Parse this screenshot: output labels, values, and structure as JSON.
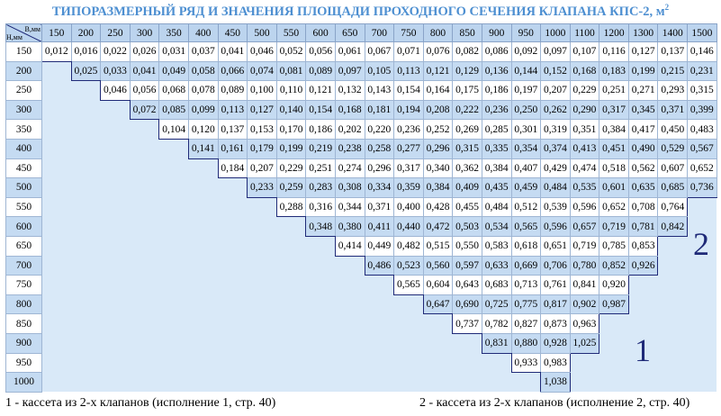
{
  "header": {
    "title": "ТИПОРАЗМЕРНЫЙ РЯД И ЗНАЧЕНИЯ ПЛОЩАДИ ПРОХОДНОГО СЕЧЕНИЯ КЛАПАНА КПС-2, м",
    "title_sup": "2"
  },
  "table": {
    "corner_top": "В,мм",
    "corner_bottom": "Н,мм",
    "columns": [
      "150",
      "200",
      "250",
      "300",
      "350",
      "400",
      "450",
      "500",
      "550",
      "600",
      "650",
      "700",
      "750",
      "800",
      "850",
      "900",
      "950",
      "1000",
      "1100",
      "1200",
      "1300",
      "1400",
      "1500"
    ],
    "rows": [
      {
        "label": "150",
        "cells": [
          "0,012",
          "0,016",
          "0,022",
          "0,026",
          "0,031",
          "0,037",
          "0,041",
          "0,046",
          "0,052",
          "0,056",
          "0,061",
          "0,067",
          "0,071",
          "0,076",
          "0,082",
          "0,086",
          "0,092",
          "0,097",
          "0,107",
          "0,116",
          "0,127",
          "0,137",
          "0,146"
        ]
      },
      {
        "label": "200",
        "cells": [
          null,
          "0,025",
          "0,033",
          "0,041",
          "0,049",
          "0,058",
          "0,066",
          "0,074",
          "0,081",
          "0,089",
          "0,097",
          "0,105",
          "0,113",
          "0,121",
          "0,129",
          "0,136",
          "0,144",
          "0,152",
          "0,168",
          "0,183",
          "0,199",
          "0,215",
          "0,231"
        ]
      },
      {
        "label": "250",
        "cells": [
          null,
          null,
          "0,046",
          "0,056",
          "0,068",
          "0,078",
          "0,089",
          "0,100",
          "0,110",
          "0,121",
          "0,132",
          "0,143",
          "0,154",
          "0,164",
          "0,175",
          "0,186",
          "0,197",
          "0,207",
          "0,229",
          "0,251",
          "0,271",
          "0,293",
          "0,315"
        ]
      },
      {
        "label": "300",
        "cells": [
          null,
          null,
          null,
          "0,072",
          "0,085",
          "0,099",
          "0,113",
          "0,127",
          "0,140",
          "0,154",
          "0,168",
          "0,181",
          "0,194",
          "0,208",
          "0,222",
          "0,236",
          "0,250",
          "0,262",
          "0,290",
          "0,317",
          "0,345",
          "0,371",
          "0,399"
        ]
      },
      {
        "label": "350",
        "cells": [
          null,
          null,
          null,
          null,
          "0,104",
          "0,120",
          "0,137",
          "0,153",
          "0,170",
          "0,186",
          "0,202",
          "0,220",
          "0,236",
          "0,252",
          "0,269",
          "0,285",
          "0,301",
          "0,319",
          "0,351",
          "0,384",
          "0,417",
          "0,450",
          "0,483"
        ]
      },
      {
        "label": "400",
        "cells": [
          null,
          null,
          null,
          null,
          null,
          "0,141",
          "0,161",
          "0,179",
          "0,199",
          "0,219",
          "0,238",
          "0,258",
          "0,277",
          "0,296",
          "0,315",
          "0,335",
          "0,354",
          "0,374",
          "0,413",
          "0,451",
          "0,490",
          "0,529",
          "0,567"
        ]
      },
      {
        "label": "450",
        "cells": [
          null,
          null,
          null,
          null,
          null,
          null,
          "0,184",
          "0,207",
          "0,229",
          "0,251",
          "0,274",
          "0,296",
          "0,317",
          "0,340",
          "0,362",
          "0,384",
          "0,407",
          "0,429",
          "0,474",
          "0,518",
          "0,562",
          "0,607",
          "0,652"
        ]
      },
      {
        "label": "500",
        "cells": [
          null,
          null,
          null,
          null,
          null,
          null,
          null,
          "0,233",
          "0,259",
          "0,283",
          "0,308",
          "0,334",
          "0,359",
          "0,384",
          "0,409",
          "0,435",
          "0,459",
          "0,484",
          "0,535",
          "0,601",
          "0,635",
          "0,685",
          "0,736"
        ]
      },
      {
        "label": "550",
        "cells": [
          null,
          null,
          null,
          null,
          null,
          null,
          null,
          null,
          "0,288",
          "0,316",
          "0,344",
          "0,371",
          "0,400",
          "0,428",
          "0,455",
          "0,484",
          "0,512",
          "0,539",
          "0,596",
          "0,652",
          "0,708",
          "0,764",
          null
        ]
      },
      {
        "label": "600",
        "cells": [
          null,
          null,
          null,
          null,
          null,
          null,
          null,
          null,
          null,
          "0,348",
          "0,380",
          "0,411",
          "0,440",
          "0,472",
          "0,503",
          "0,534",
          "0,565",
          "0,596",
          "0,657",
          "0,719",
          "0,781",
          "0,842",
          null
        ]
      },
      {
        "label": "650",
        "cells": [
          null,
          null,
          null,
          null,
          null,
          null,
          null,
          null,
          null,
          null,
          "0,414",
          "0,449",
          "0,482",
          "0,515",
          "0,550",
          "0,583",
          "0,618",
          "0,651",
          "0,719",
          "0,785",
          "0,853",
          null,
          null
        ]
      },
      {
        "label": "700",
        "cells": [
          null,
          null,
          null,
          null,
          null,
          null,
          null,
          null,
          null,
          null,
          null,
          "0,486",
          "0,523",
          "0,560",
          "0,597",
          "0,633",
          "0,669",
          "0,706",
          "0,780",
          "0,852",
          "0,926",
          null,
          null
        ]
      },
      {
        "label": "750",
        "cells": [
          null,
          null,
          null,
          null,
          null,
          null,
          null,
          null,
          null,
          null,
          null,
          null,
          "0,565",
          "0,604",
          "0,643",
          "0,683",
          "0,713",
          "0,761",
          "0,841",
          "0,920",
          null,
          null,
          null
        ]
      },
      {
        "label": "800",
        "cells": [
          null,
          null,
          null,
          null,
          null,
          null,
          null,
          null,
          null,
          null,
          null,
          null,
          null,
          "0,647",
          "0,690",
          "0,725",
          "0,775",
          "0,817",
          "0,902",
          "0,987",
          null,
          null,
          null
        ]
      },
      {
        "label": "850",
        "cells": [
          null,
          null,
          null,
          null,
          null,
          null,
          null,
          null,
          null,
          null,
          null,
          null,
          null,
          null,
          "0,737",
          "0,782",
          "0,827",
          "0,873",
          "0,963",
          null,
          null,
          null,
          null
        ]
      },
      {
        "label": "900",
        "cells": [
          null,
          null,
          null,
          null,
          null,
          null,
          null,
          null,
          null,
          null,
          null,
          null,
          null,
          null,
          null,
          "0,831",
          "0,880",
          "0,928",
          "1,025",
          null,
          null,
          null,
          null
        ]
      },
      {
        "label": "950",
        "cells": [
          null,
          null,
          null,
          null,
          null,
          null,
          null,
          null,
          null,
          null,
          null,
          null,
          null,
          null,
          null,
          null,
          "0,933",
          "0,983",
          null,
          null,
          null,
          null,
          null
        ]
      },
      {
        "label": "1000",
        "cells": [
          null,
          null,
          null,
          null,
          null,
          null,
          null,
          null,
          null,
          null,
          null,
          null,
          null,
          null,
          null,
          null,
          null,
          "1,038",
          null,
          null,
          null,
          null,
          null
        ]
      }
    ]
  },
  "regions": {
    "one": "1",
    "two": "2"
  },
  "footer": {
    "left": "1 - кассета из 2-х клапанов (исполнение 1, стр. 40)",
    "right": "2 - кассета из 2-х клапанов (исполнение 2, стр. 40)"
  }
}
